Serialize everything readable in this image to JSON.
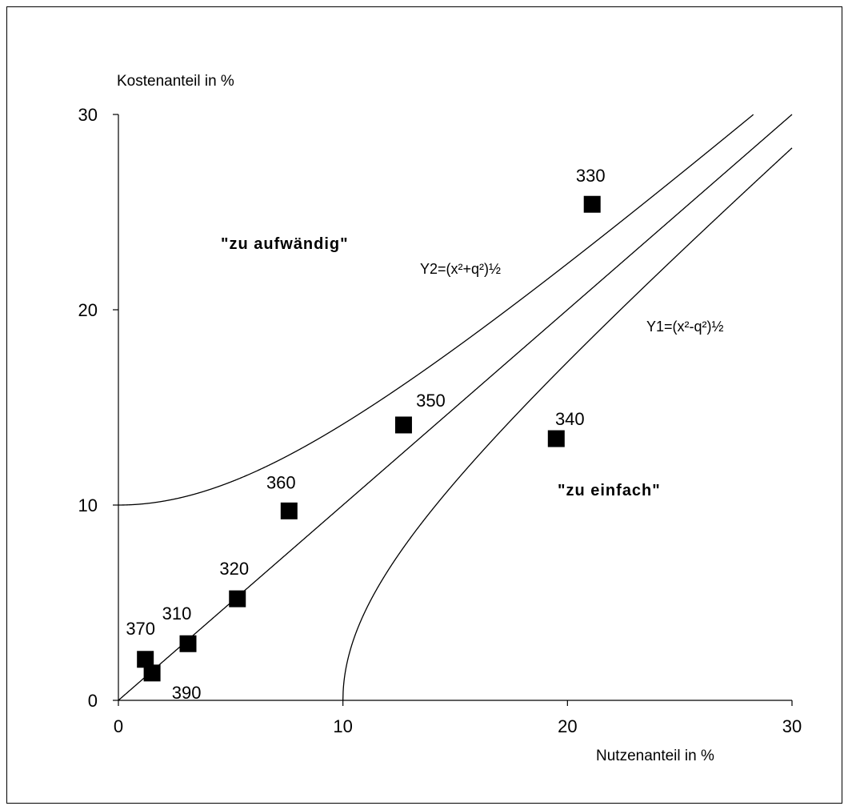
{
  "chart_data": {
    "type": "scatter",
    "xlabel": "Nutzenanteil in %",
    "ylabel": "Kostenanteil in %",
    "xlim": [
      0,
      30
    ],
    "ylim": [
      0,
      30
    ],
    "xticks": [
      0,
      10,
      20,
      30
    ],
    "yticks": [
      0,
      10,
      20,
      30
    ],
    "xtick_labels": [
      "0",
      "10",
      "20",
      "30"
    ],
    "ytick_labels": [
      "0",
      "10",
      "20",
      "30"
    ],
    "grid": false,
    "q": 10,
    "points": [
      {
        "label": "310",
        "x": 3.1,
        "y": 2.9
      },
      {
        "label": "320",
        "x": 5.3,
        "y": 5.2
      },
      {
        "label": "330",
        "x": 21.1,
        "y": 25.4
      },
      {
        "label": "340",
        "x": 19.5,
        "y": 13.4
      },
      {
        "label": "350",
        "x": 12.7,
        "y": 14.1
      },
      {
        "label": "360",
        "x": 7.6,
        "y": 9.7
      },
      {
        "label": "370",
        "x": 1.2,
        "y": 2.1
      },
      {
        "label": "390",
        "x": 1.5,
        "y": 1.4
      }
    ],
    "curves": [
      {
        "name": "Y2=(x²+q²)½",
        "formula": "sqrt(x^2+q^2)"
      },
      {
        "name": "",
        "formula": "x"
      },
      {
        "name": "Y1=(x²-q²)½",
        "formula": "sqrt(x^2-q^2)"
      }
    ],
    "annotations": [
      "\"zu aufwändig\"",
      "\"zu einfach\""
    ]
  }
}
